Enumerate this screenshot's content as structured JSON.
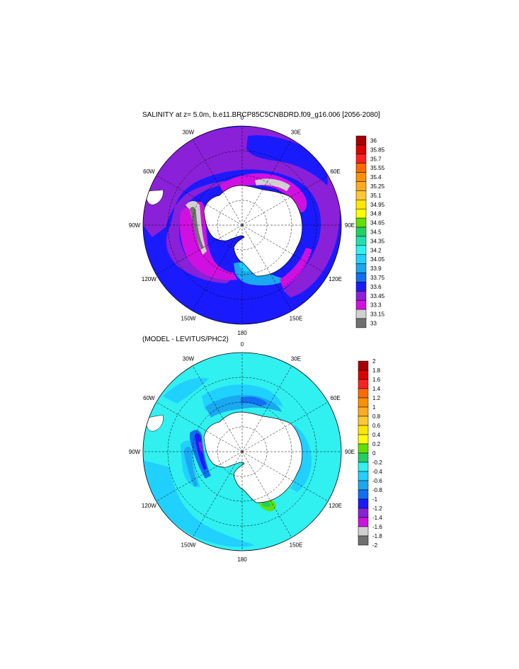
{
  "top_panel": {
    "title": "SALINITY at z=   5.0m, b.e11.BRCP85C5CNBDRD.f09_g16.006 [2056-2080]",
    "lon_labels": [
      "0",
      "30E",
      "60E",
      "90E",
      "120E",
      "150E",
      "180",
      "150W",
      "120W",
      "90W",
      "60W",
      "30W"
    ],
    "colorbar": {
      "labels": [
        "36",
        "35.85",
        "35.7",
        "35.55",
        "35.4",
        "35.25",
        "35.1",
        "34.95",
        "34.8",
        "34.65",
        "34.5",
        "34.35",
        "34.2",
        "34.05",
        "33.9",
        "33.75",
        "33.6",
        "33.45",
        "33.3",
        "33.15",
        "33"
      ],
      "colors": [
        "#a80000",
        "#dd0000",
        "#ff2020",
        "#ff6a00",
        "#ff9000",
        "#ffaa20",
        "#ffc830",
        "#ffe600",
        "#ffff00",
        "#60e000",
        "#20d060",
        "#20e0b0",
        "#30f0f0",
        "#20d0ff",
        "#1aa8f0",
        "#1070f0",
        "#1a1aff",
        "#8a20d8",
        "#d010e0",
        "#d0d0d0",
        "#707070"
      ]
    }
  },
  "bottom_panel": {
    "title": "(MODEL - LEVITUS/PHC2)",
    "lon_labels": [
      "0",
      "30E",
      "60E",
      "90E",
      "120E",
      "150E",
      "180",
      "150W",
      "120W",
      "90W",
      "60W",
      "30W"
    ],
    "colorbar": {
      "labels": [
        "2",
        "1.8",
        "1.6",
        "1.4",
        "1.2",
        "1",
        "0.8",
        "0.6",
        "0.4",
        "0.2",
        "0",
        "-0.2",
        "-0.4",
        "-0.6",
        "-0.8",
        "-1",
        "-1.2",
        "-1.4",
        "-1.6",
        "-1.8",
        "-2"
      ],
      "colors": [
        "#a80000",
        "#dd0000",
        "#ff2020",
        "#ff6a00",
        "#ff9000",
        "#ffaa20",
        "#ffc830",
        "#ffe600",
        "#ffff00",
        "#60e000",
        "#20d060",
        "#30f0f0",
        "#20d0ff",
        "#1aa8f0",
        "#1070f0",
        "#1a1aff",
        "#8a20d8",
        "#d010e0",
        "#d0d0d0",
        "#707070"
      ]
    }
  }
}
